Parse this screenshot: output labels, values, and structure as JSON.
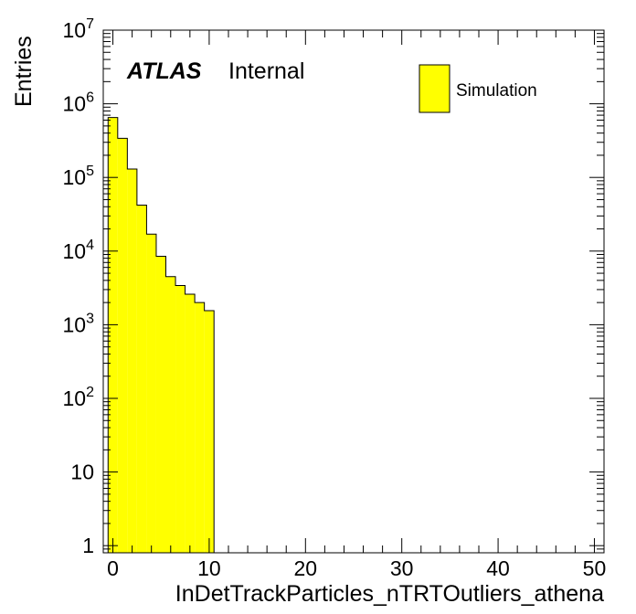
{
  "chart_data": {
    "type": "histogram",
    "y_scale": "log",
    "xlabel": "InDetTrackParticles_nTRTOutliers_athena",
    "ylabel": "Entries",
    "xlim": [
      -1,
      51
    ],
    "ylim": [
      0.8,
      10000000
    ],
    "x_ticks": [
      0,
      10,
      20,
      30,
      40,
      50
    ],
    "x_tick_labels": [
      "0",
      "10",
      "20",
      "30",
      "40",
      "50"
    ],
    "y_ticks": [
      {
        "value": 1,
        "base": "1",
        "exp": ""
      },
      {
        "value": 10,
        "base": "10",
        "exp": ""
      },
      {
        "value": 100,
        "base": "10",
        "exp": "2"
      },
      {
        "value": 1000,
        "base": "10",
        "exp": "3"
      },
      {
        "value": 10000,
        "base": "10",
        "exp": "4"
      },
      {
        "value": 100000,
        "base": "10",
        "exp": "5"
      },
      {
        "value": 1000000,
        "base": "10",
        "exp": "6"
      },
      {
        "value": 10000000,
        "base": "10",
        "exp": "7"
      }
    ],
    "bin_width": 1,
    "bins_low_edge": [
      -0.5,
      0.5,
      1.5,
      2.5,
      3.5,
      4.5,
      5.5,
      6.5,
      7.5,
      8.5,
      9.5
    ],
    "series": [
      {
        "name": "Simulation",
        "color": "#ffff00",
        "values": [
          650000,
          340000,
          130000,
          42000,
          17000,
          8500,
          4500,
          3400,
          2600,
          2000,
          1550
        ]
      }
    ],
    "legend_position": "top-right",
    "grid": false
  },
  "labels": {
    "atlas": "ATLAS",
    "internal": "Internal",
    "legend_entry": "Simulation"
  },
  "colors": {
    "fill": "#ffff00",
    "line": "#000000",
    "background": "#ffffff"
  }
}
